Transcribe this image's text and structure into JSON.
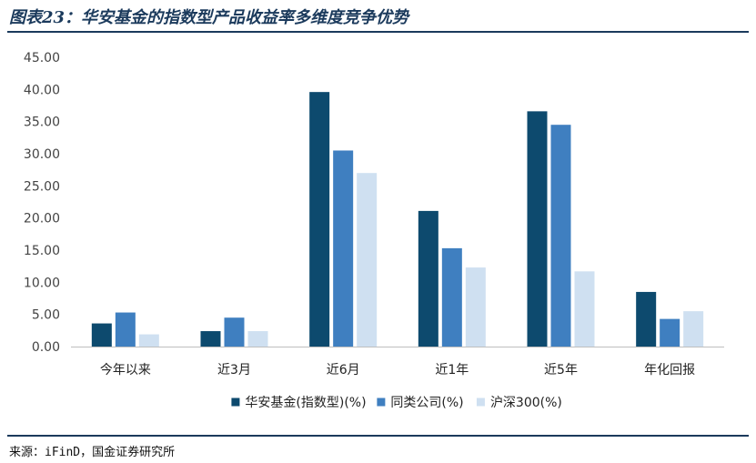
{
  "header": {
    "title": "图表23：华安基金的指数型产品收益率多维度竞争优势"
  },
  "footer": {
    "source": "来源：iFinD，国金证券研究所"
  },
  "chart_data": {
    "type": "bar",
    "title": "",
    "xlabel": "",
    "ylabel": "",
    "ylim": [
      0,
      45
    ],
    "ytick_labels": [
      "0.00",
      "5.00",
      "10.00",
      "15.00",
      "20.00",
      "25.00",
      "30.00",
      "35.00",
      "40.00",
      "45.00"
    ],
    "categories": [
      "今年以来",
      "近3月",
      "近6月",
      "近1年",
      "近5年",
      "年化回报"
    ],
    "series": [
      {
        "name": "华安基金(指数型)(%)",
        "color": "#0d4a6e",
        "values": [
          3.6,
          2.4,
          39.6,
          21.1,
          36.6,
          8.5
        ]
      },
      {
        "name": "同类公司(%)",
        "color": "#3f7fc0",
        "values": [
          5.3,
          4.5,
          30.5,
          15.3,
          34.5,
          4.3
        ]
      },
      {
        "name": "沪深300(%)",
        "color": "#cfe0f1",
        "values": [
          1.9,
          2.4,
          27.0,
          12.3,
          11.7,
          5.5
        ]
      }
    ],
    "grid": false,
    "legend_position": "bottom"
  }
}
